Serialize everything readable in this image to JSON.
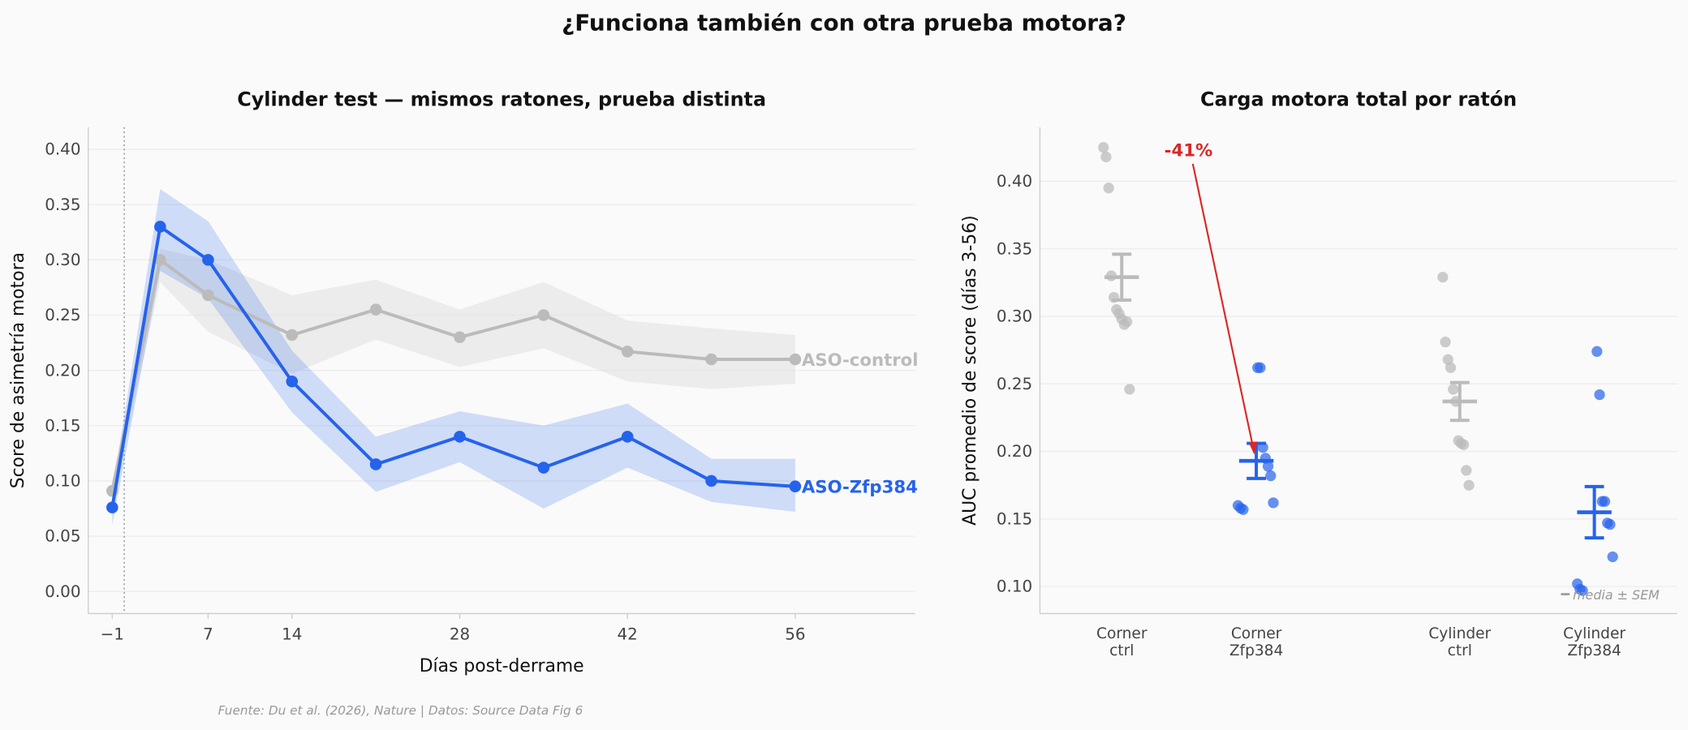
{
  "title": "¿Funciona también con otra prueba motora?",
  "source": "Fuente: Du et al. (2026), Nature | Datos: Source Data Fig 6",
  "chart_data": [
    {
      "type": "line",
      "title": "Cylinder test — mismos ratones, prueba distinta",
      "xlabel": "Días post-derrame",
      "ylabel": "Score de asimetría motora",
      "x": [
        -1,
        3,
        7,
        14,
        21,
        28,
        35,
        42,
        49,
        56
      ],
      "series": [
        {
          "name": "ASO-control",
          "color": "#bbbbbb",
          "band_color": "#dddddd",
          "values": [
            0.091,
            0.3,
            0.268,
            0.232,
            0.255,
            0.23,
            0.25,
            0.217,
            0.21,
            0.21
          ],
          "lower": [
            0.08,
            0.28,
            0.235,
            0.197,
            0.228,
            0.203,
            0.22,
            0.19,
            0.183,
            0.188
          ],
          "upper": [
            0.1,
            0.31,
            0.3,
            0.268,
            0.282,
            0.255,
            0.28,
            0.245,
            0.238,
            0.232
          ]
        },
        {
          "name": "ASO-Zfp384",
          "color": "#2563eb",
          "band_color": "#2563eb",
          "values": [
            0.076,
            0.33,
            0.3,
            0.19,
            0.115,
            0.14,
            0.112,
            0.14,
            0.1,
            0.095
          ],
          "lower": [
            0.06,
            0.29,
            0.265,
            0.162,
            0.09,
            0.117,
            0.075,
            0.112,
            0.081,
            0.072
          ],
          "upper": [
            0.09,
            0.364,
            0.335,
            0.218,
            0.14,
            0.163,
            0.15,
            0.17,
            0.12,
            0.12
          ]
        }
      ],
      "vline": 0,
      "xlim": [
        -3,
        66
      ],
      "xticks": [
        {
          "value": -1,
          "label": "−1"
        },
        7,
        14,
        28,
        42,
        56
      ],
      "ylim": [
        -0.02,
        0.42
      ],
      "yticks": [
        {
          "value": 0,
          "label": "0.00"
        },
        {
          "value": 0.05,
          "label": "0.05"
        },
        {
          "value": 0.1,
          "label": "0.10"
        },
        {
          "value": 0.15,
          "label": "0.15"
        },
        {
          "value": 0.2,
          "label": "0.20"
        },
        {
          "value": 0.25,
          "label": "0.25"
        },
        {
          "value": 0.3,
          "label": "0.30"
        },
        {
          "value": 0.35,
          "label": "0.35"
        },
        {
          "value": 0.4,
          "label": "0.40"
        }
      ],
      "grid": true
    },
    {
      "type": "strip",
      "title": "Carga motora total por ratón",
      "ylabel": "AUC promedio de score (días 3-56)",
      "categories": [
        "Corner\nctrl",
        "Corner\nZfp384",
        "Cylinder\nctrl",
        "Cylinder\nZfp384"
      ],
      "colors": [
        "#bbbbbb",
        "#2563eb",
        "#bbbbbb",
        "#2563eb"
      ],
      "points": [
        [
          0.425,
          0.418,
          0.395,
          0.33,
          0.314,
          0.305,
          0.302,
          0.298,
          0.294,
          0.296,
          0.246
        ],
        [
          0.262,
          0.262,
          0.203,
          0.195,
          0.189,
          0.182,
          0.162,
          0.16,
          0.158,
          0.157
        ],
        [
          0.329,
          0.281,
          0.268,
          0.262,
          0.246,
          0.237,
          0.208,
          0.206,
          0.205,
          0.186,
          0.175
        ],
        [
          0.274,
          0.242,
          0.163,
          0.163,
          0.147,
          0.146,
          0.122,
          0.102,
          0.098,
          0.097
        ]
      ],
      "means": [
        0.329,
        0.193,
        0.237,
        0.155
      ],
      "sems": [
        0.017,
        0.013,
        0.014,
        0.019
      ],
      "annotation": {
        "text": "-41%",
        "color": "#dc2626"
      },
      "sem_note": "media ± SEM",
      "ylim": [
        0.08,
        0.44
      ],
      "yticks": [
        {
          "value": 0.1,
          "label": "0.10"
        },
        {
          "value": 0.15,
          "label": "0.15"
        },
        {
          "value": 0.2,
          "label": "0.20"
        },
        {
          "value": 0.25,
          "label": "0.25"
        },
        {
          "value": 0.3,
          "label": "0.30"
        },
        {
          "value": 0.35,
          "label": "0.35"
        },
        {
          "value": 0.4,
          "label": "0.40"
        }
      ],
      "grid": true
    }
  ]
}
